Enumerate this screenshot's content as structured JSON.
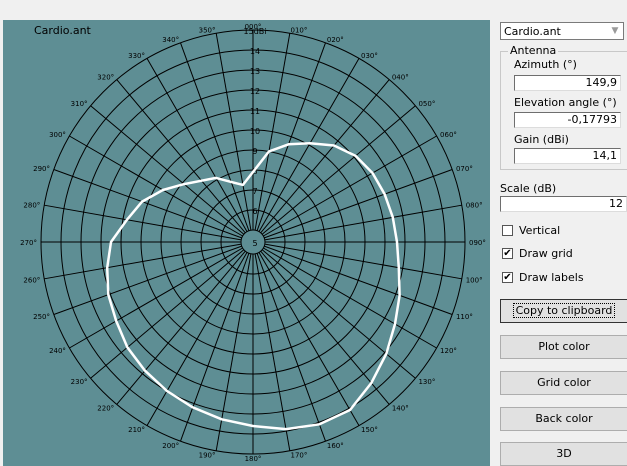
{
  "plot": {
    "title": "Cardio.ant",
    "colors": {
      "background": "#5e8e94",
      "grid": "#000000",
      "pattern": "#ffffff"
    },
    "angle_labels": [
      "000",
      "010",
      "020",
      "030",
      "040",
      "050",
      "060",
      "070",
      "080",
      "090",
      "100",
      "110",
      "120",
      "130",
      "140",
      "150",
      "160",
      "170",
      "180",
      "190",
      "200",
      "210",
      "220",
      "230",
      "240",
      "250",
      "260",
      "270",
      "280",
      "290",
      "300",
      "310",
      "320",
      "330",
      "340",
      "350"
    ],
    "ring_labels": [
      "5",
      "6",
      "7",
      "8",
      "9",
      "10",
      "11",
      "12",
      "13",
      "14",
      "15dBi"
    ],
    "chart_data": {
      "type": "polar",
      "title": "Cardio.ant",
      "r_ticks_dbi": [
        5,
        6,
        7,
        8,
        9,
        10,
        11,
        12,
        13,
        14,
        15
      ],
      "angle_step_deg": 10,
      "grid": true,
      "series": [
        {
          "points": [
            {
              "azimuth": 0,
              "gain_dbi": 7.9
            },
            {
              "azimuth": 10,
              "gain_dbi": 9.0
            },
            {
              "azimuth": 20,
              "gain_dbi": 9.6
            },
            {
              "azimuth": 30,
              "gain_dbi": 10.1
            },
            {
              "azimuth": 40,
              "gain_dbi": 10.7
            },
            {
              "azimuth": 50,
              "gain_dbi": 11.1
            },
            {
              "azimuth": 60,
              "gain_dbi": 11.3
            },
            {
              "azimuth": 70,
              "gain_dbi": 11.4
            },
            {
              "azimuth": 80,
              "gain_dbi": 11.5
            },
            {
              "azimuth": 90,
              "gain_dbi": 11.6
            },
            {
              "azimuth": 100,
              "gain_dbi": 11.8
            },
            {
              "azimuth": 110,
              "gain_dbi": 12.2
            },
            {
              "azimuth": 120,
              "gain_dbi": 12.6
            },
            {
              "azimuth": 130,
              "gain_dbi": 13.1
            },
            {
              "azimuth": 140,
              "gain_dbi": 13.6
            },
            {
              "azimuth": 150,
              "gain_dbi": 14.1
            },
            {
              "azimuth": 160,
              "gain_dbi": 14.1
            },
            {
              "azimuth": 170,
              "gain_dbi": 13.9
            },
            {
              "azimuth": 180,
              "gain_dbi": 13.6
            },
            {
              "azimuth": 190,
              "gain_dbi": 13.4
            },
            {
              "azimuth": 200,
              "gain_dbi": 13.2
            },
            {
              "azimuth": 210,
              "gain_dbi": 13.0
            },
            {
              "azimuth": 220,
              "gain_dbi": 12.8
            },
            {
              "azimuth": 230,
              "gain_dbi": 12.6
            },
            {
              "azimuth": 240,
              "gain_dbi": 12.3
            },
            {
              "azimuth": 250,
              "gain_dbi": 12.1
            },
            {
              "azimuth": 260,
              "gain_dbi": 11.8
            },
            {
              "azimuth": 270,
              "gain_dbi": 11.5
            },
            {
              "azimuth": 280,
              "gain_dbi": 10.8
            },
            {
              "azimuth": 290,
              "gain_dbi": 10.3
            },
            {
              "azimuth": 300,
              "gain_dbi": 9.6
            },
            {
              "azimuth": 310,
              "gain_dbi": 8.9
            },
            {
              "azimuth": 320,
              "gain_dbi": 8.4
            },
            {
              "azimuth": 330,
              "gain_dbi": 8.1
            },
            {
              "azimuth": 340,
              "gain_dbi": 7.6
            },
            {
              "azimuth": 350,
              "gain_dbi": 7.3
            }
          ]
        }
      ]
    }
  },
  "side": {
    "file_select": {
      "value": "Cardio.ant"
    },
    "antenna_group": {
      "label": "Antenna"
    },
    "azimuth": {
      "label": "Azimuth (°)",
      "value": "149,9"
    },
    "elevation": {
      "label": "Elevation angle (°)",
      "value": "-0,17793"
    },
    "gain": {
      "label": "Gain (dBi)",
      "value": "14,1"
    },
    "scale": {
      "label": "Scale (dB)",
      "value": "12"
    },
    "vertical": {
      "label": "Vertical",
      "checked": false
    },
    "draw_grid": {
      "label": "Draw grid",
      "checked": true
    },
    "draw_labels": {
      "label": "Draw labels",
      "checked": true
    },
    "buttons": {
      "copy": "Copy to clipboard",
      "plot_color": "Plot color",
      "grid_color": "Grid color",
      "back_color": "Back color",
      "threed": "3D"
    }
  }
}
